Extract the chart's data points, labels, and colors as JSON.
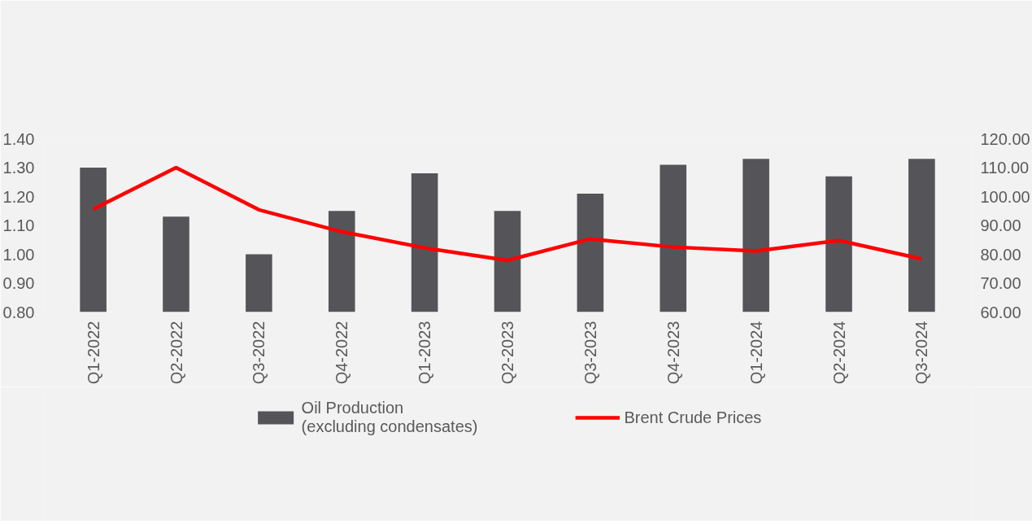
{
  "chart_data": {
    "type": "bar",
    "categories": [
      "Q1-2022",
      "Q2-2022",
      "Q3-2022",
      "Q4-2022",
      "Q1-2023",
      "Q2-2023",
      "Q3-2023",
      "Q4-2023",
      "Q1-2024",
      "Q2-2024",
      "Q3-2024"
    ],
    "series": [
      {
        "name": "Oil Production\n(excluding condensates)",
        "color": "#555559",
        "values": [
          1.3,
          1.13,
          1.0,
          1.15,
          1.28,
          1.15,
          1.21,
          1.31,
          1.33,
          1.27,
          1.33
        ]
      },
      {
        "name": "Brent Crude Prices",
        "type": "line",
        "axis": "y2",
        "color": "#ff0000",
        "values": [
          95.6,
          110.0,
          95.4,
          87.8,
          82.2,
          77.9,
          85.3,
          82.5,
          81.1,
          84.8,
          78.4
        ]
      }
    ],
    "ylim": [
      0.8,
      1.4
    ],
    "yticks": [
      {
        "value": 0.8,
        "label": "0.80"
      },
      {
        "value": 0.9,
        "label": "0.90"
      },
      {
        "value": 1.0,
        "label": "1.00"
      },
      {
        "value": 1.1,
        "label": "1.10"
      },
      {
        "value": 1.2,
        "label": "1.20"
      },
      {
        "value": 1.3,
        "label": "1.30"
      },
      {
        "value": 1.4,
        "label": "1.40"
      }
    ],
    "y2lim": [
      60,
      120
    ],
    "y2ticks": [
      {
        "value": 60,
        "label": "60.00"
      },
      {
        "value": 70,
        "label": "70.00"
      },
      {
        "value": 80,
        "label": "80.00"
      },
      {
        "value": 90,
        "label": "90.00"
      },
      {
        "value": 100,
        "label": "100.00"
      },
      {
        "value": 110,
        "label": "110.00"
      },
      {
        "value": 120,
        "label": "120.00"
      }
    ],
    "grid": false,
    "legend": "bottom",
    "marker": "none",
    "line_style": "solid"
  }
}
